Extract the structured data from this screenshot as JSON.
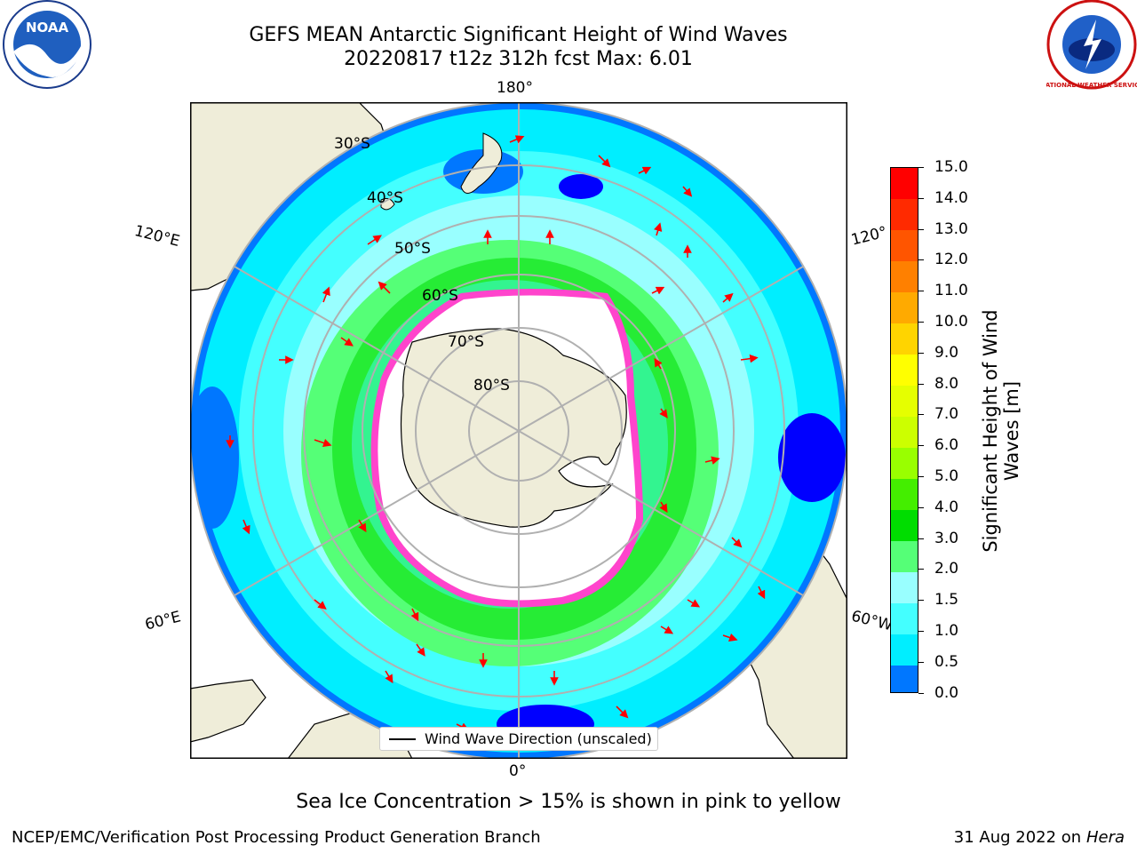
{
  "title": {
    "line1": "GEFS MEAN Antarctic Significant Height of Wind Waves",
    "line2": "20220817 t12z 312h fcst   Max: 6.01"
  },
  "map": {
    "projection": "south-polar-stereographic",
    "lon_labels": {
      "top": "180°",
      "bottom": "0°",
      "upper_left": "120°E",
      "upper_right": "120°",
      "lower_left": "60°E",
      "lower_right": "60°W"
    },
    "lat_labels": [
      "30°S",
      "40°S",
      "50°S",
      "60°S",
      "70°S",
      "80°S"
    ],
    "legend_label": "Wind Wave Direction (unscaled)",
    "colors": {
      "land": "#efedd9",
      "ocean_low": "#0000ff",
      "ocean_mid": "#00ffff",
      "ocean_green": "#00e000",
      "sea_ice": "#ff44cc",
      "arrow": "#ff0000",
      "grid": "#b0b0b0"
    }
  },
  "colorbar": {
    "label_line1": "Significant Height of Wind",
    "label_line2": "Waves [m]",
    "ticks": [
      "15.0",
      "14.0",
      "13.0",
      "12.0",
      "11.0",
      "10.0",
      "9.0",
      "8.0",
      "7.0",
      "6.0",
      "5.0",
      "4.0",
      "3.0",
      "2.0",
      "1.5",
      "1.0",
      "0.5",
      "0.0"
    ],
    "colors_top_to_bottom": [
      "#ff0000",
      "#ff2a00",
      "#ff5500",
      "#ff8000",
      "#ffaa00",
      "#ffd400",
      "#ffff00",
      "#e5ff00",
      "#ccff00",
      "#99ff00",
      "#44ee00",
      "#00dd00",
      "#55ff77",
      "#99ffff",
      "#44ffff",
      "#00eeff",
      "#0077ff",
      "#0000ff"
    ]
  },
  "logos": {
    "left": "NOAA",
    "right": "NATIONAL WEATHER SERVICE"
  },
  "footer": {
    "ice_note": "Sea Ice Concentration > 15% is shown in pink to yellow",
    "credit": "NCEP/EMC/Verification Post Processing Product Generation Branch",
    "date": "31 Aug 2022 on",
    "system": "Hera"
  }
}
